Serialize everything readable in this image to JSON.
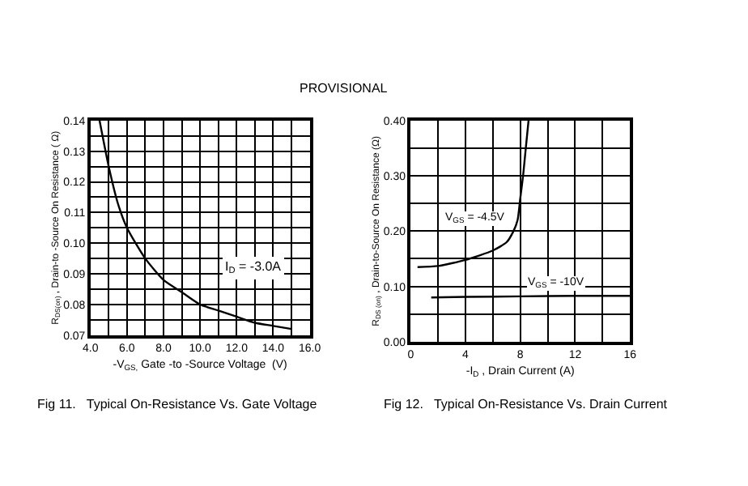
{
  "chart_data": [
    {
      "type": "line",
      "xlabel": "-V$_{GS,}$ Gate -to -Source Voltage  (V)",
      "ylabel": "R$_{DS(on)}$ , Drain-to -Source On Resistance ( Ω)",
      "x": [
        4.5,
        5,
        5.5,
        6,
        7,
        8,
        9,
        10,
        11,
        12,
        13,
        14,
        15
      ],
      "series": [
        {
          "color": "#000000",
          "values": [
            0.14,
            0.125,
            0.113,
            0.105,
            0.095,
            0.088,
            0.084,
            0.08,
            0.078,
            0.076,
            0.074,
            0.073,
            0.072
          ]
        }
      ],
      "xlim": [
        4,
        16
      ],
      "xticks": [
        {
          "value": 4,
          "label": "4.0"
        },
        {
          "value": 6,
          "label": "6.0"
        },
        {
          "value": 8,
          "label": "8.0"
        },
        {
          "value": 10,
          "label": "10.0"
        },
        {
          "value": 12,
          "label": "12.0"
        },
        {
          "value": 14,
          "label": "14.0"
        },
        {
          "value": 16,
          "label": "16.0"
        }
      ],
      "ylim": [
        0.07,
        0.14
      ],
      "yticks": [
        0.07,
        0.08,
        0.09,
        {
          "value": 0.1,
          "label": "0.10"
        },
        0.11,
        0.12,
        0.13,
        0.14
      ],
      "grid": true,
      "marker": "none",
      "line_style": "solid",
      "annotations": [
        "I$_{D}$ = -3.0A",
        "Fig 11.   Typical On-Resistance Vs. Gate Voltage",
        "PROVISIONAL"
      ]
    },
    {
      "type": "line",
      "xlabel": "-I$_{D}$ , Drain Current (A)",
      "ylabel": "R$_{DS (on)}$ , Drain-to-Source On Resistance (Ω)",
      "series": [
        {
          "name": "V$_{GS}$ = -4.5V",
          "color": "#000000",
          "x": [
            0.5,
            2,
            4,
            6,
            7,
            7.5,
            7.8,
            8,
            8.2,
            8.4,
            8.6
          ],
          "values": [
            0.135,
            0.137,
            0.148,
            0.165,
            0.18,
            0.2,
            0.22,
            0.26,
            0.3,
            0.35,
            0.4
          ]
        },
        {
          "name": "V$_{GS}$ = -10V",
          "color": "#000000",
          "x": [
            1.5,
            4,
            8,
            12,
            16
          ],
          "values": [
            0.08,
            0.081,
            0.082,
            0.083,
            0.083
          ]
        }
      ],
      "xlim": [
        0,
        16
      ],
      "xticks": [
        0,
        4,
        8,
        12,
        16
      ],
      "ylim": [
        0,
        0.4
      ],
      "yticks": [
        {
          "value": 0,
          "label": "0.00"
        },
        {
          "value": 0.1,
          "label": "0.10"
        },
        {
          "value": 0.2,
          "label": "0.20"
        },
        {
          "value": 0.3,
          "label": "0.30"
        },
        {
          "value": 0.4,
          "label": "0.40"
        }
      ],
      "grid": true,
      "marker": "none",
      "line_style": "solid",
      "annotations": [
        "Fig 12.   Typical On-Resistance Vs. Drain Current"
      ]
    }
  ]
}
